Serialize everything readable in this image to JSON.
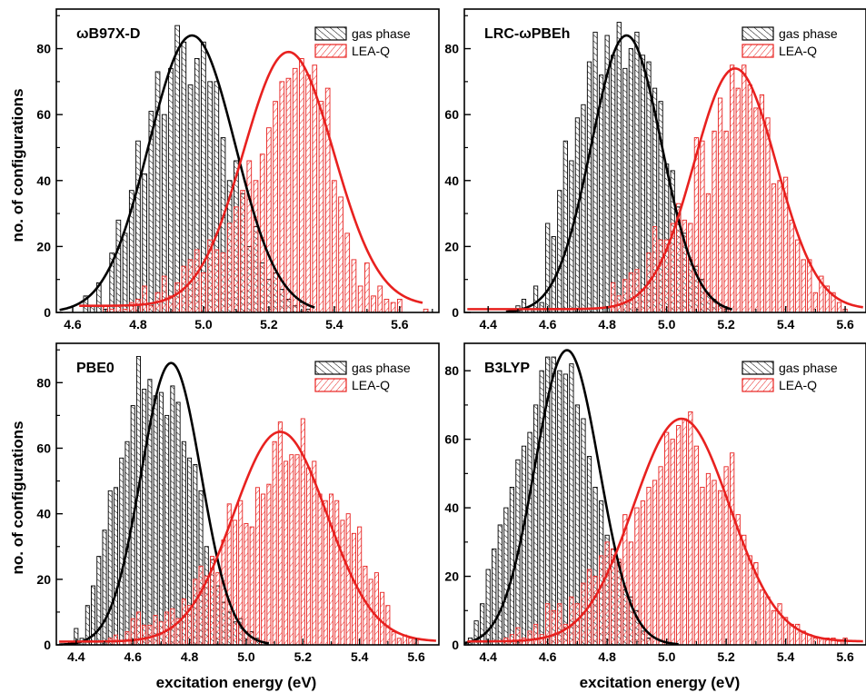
{
  "figure": {
    "ylabel": "no. of configurations",
    "xlabel": "excitation energy (eV)",
    "legend_labels": [
      "gas phase",
      "LEA-Q"
    ]
  },
  "colors": {
    "gas": "#000000",
    "leaq": "#e8211f"
  },
  "chart_data": [
    {
      "type": "bar",
      "title": "ωB97X-D",
      "xlim": [
        4.55,
        5.72
      ],
      "ylim": [
        0,
        92
      ],
      "xticks": [
        4.6,
        4.8,
        5.0,
        5.2,
        5.4,
        5.6
      ],
      "yticks": [
        0,
        20,
        40,
        60,
        80
      ],
      "bin_width": 0.02,
      "legend": "top-right",
      "series": [
        {
          "name": "gas phase",
          "x": [
            4.64,
            4.66,
            4.68,
            4.7,
            4.72,
            4.74,
            4.76,
            4.78,
            4.8,
            4.82,
            4.84,
            4.86,
            4.88,
            4.9,
            4.92,
            4.94,
            4.96,
            4.98,
            5.0,
            5.02,
            5.04,
            5.06,
            5.08,
            5.1,
            5.12,
            5.14,
            5.16,
            5.18,
            5.2,
            5.22,
            5.24,
            5.26,
            5.28,
            5.3,
            5.32
          ],
          "values": [
            5,
            2,
            9,
            1,
            18,
            28,
            24,
            37,
            52,
            42,
            61,
            73,
            60,
            74,
            87,
            82,
            69,
            77,
            82,
            70,
            70,
            53,
            40,
            46,
            36,
            20,
            26,
            15,
            10,
            12,
            7,
            4,
            2,
            3,
            1
          ]
        },
        {
          "name": "LEA-Q",
          "x": [
            4.7,
            4.72,
            4.74,
            4.76,
            4.78,
            4.8,
            4.82,
            4.84,
            4.86,
            4.88,
            4.9,
            4.92,
            4.94,
            4.96,
            4.98,
            5.0,
            5.02,
            5.04,
            5.06,
            5.08,
            5.1,
            5.12,
            5.14,
            5.16,
            5.18,
            5.2,
            5.22,
            5.24,
            5.26,
            5.28,
            5.3,
            5.32,
            5.34,
            5.36,
            5.38,
            5.4,
            5.42,
            5.44,
            5.46,
            5.48,
            5.5,
            5.52,
            5.54,
            5.56,
            5.58,
            5.6,
            5.68
          ],
          "values": [
            2,
            1,
            2,
            1,
            3,
            4,
            8,
            2,
            6,
            11,
            5,
            9,
            14,
            16,
            19,
            12,
            22,
            19,
            18,
            27,
            32,
            37,
            46,
            40,
            48,
            56,
            64,
            70,
            71,
            74,
            77,
            72,
            75,
            64,
            68,
            40,
            35,
            24,
            16,
            8,
            15,
            5,
            8,
            4,
            3,
            4,
            1
          ]
        }
      ],
      "fit": [
        {
          "name": "gas phase",
          "amplitude": 84,
          "mean": 4.965,
          "sigma": 0.132,
          "x_range": [
            4.56,
            5.34
          ]
        },
        {
          "name": "LEA-Q",
          "amplitude": 77,
          "mean": 5.26,
          "sigma": 0.138,
          "x_range": [
            4.62,
            5.67
          ],
          "baseline": 2
        }
      ]
    },
    {
      "type": "bar",
      "title": "LRC-ωPBEh",
      "xlim": [
        4.32,
        5.67
      ],
      "ylim": [
        0,
        92
      ],
      "xticks": [
        4.4,
        4.6,
        4.8,
        5.0,
        5.2,
        5.4,
        5.6
      ],
      "yticks": [
        0,
        20,
        40,
        60,
        80
      ],
      "bin_width": 0.02,
      "legend": "top-right",
      "series": [
        {
          "name": "gas phase",
          "x": [
            4.5,
            4.52,
            4.54,
            4.56,
            4.58,
            4.6,
            4.62,
            4.64,
            4.66,
            4.68,
            4.7,
            4.72,
            4.74,
            4.76,
            4.78,
            4.8,
            4.82,
            4.84,
            4.86,
            4.88,
            4.9,
            4.92,
            4.94,
            4.96,
            4.98,
            5.0,
            5.02,
            5.04,
            5.06,
            5.08,
            5.1,
            5.12,
            5.14,
            5.16,
            5.18,
            5.2
          ],
          "values": [
            2,
            4,
            1,
            8,
            3,
            27,
            23,
            37,
            52,
            46,
            59,
            63,
            76,
            85,
            72,
            84,
            78,
            88,
            74,
            80,
            85,
            78,
            76,
            68,
            64,
            45,
            43,
            32,
            24,
            16,
            14,
            10,
            6,
            4,
            2,
            1
          ]
        },
        {
          "name": "LEA-Q",
          "x": [
            4.82,
            4.84,
            4.86,
            4.88,
            4.9,
            4.92,
            4.94,
            4.96,
            4.98,
            5.0,
            5.02,
            5.04,
            5.06,
            5.08,
            5.1,
            5.12,
            5.14,
            5.16,
            5.18,
            5.2,
            5.22,
            5.24,
            5.26,
            5.28,
            5.3,
            5.32,
            5.34,
            5.36,
            5.38,
            5.4,
            5.42,
            5.44,
            5.46,
            5.48,
            5.5,
            5.52,
            5.54,
            5.56,
            5.58,
            5.6
          ],
          "values": [
            9,
            5,
            10,
            12,
            13,
            7,
            18,
            26,
            22,
            22,
            27,
            33,
            28,
            27,
            53,
            52,
            36,
            55,
            65,
            55,
            75,
            68,
            75,
            69,
            62,
            66,
            59,
            39,
            40,
            41,
            28,
            22,
            16,
            16,
            6,
            11,
            8,
            6,
            3,
            1
          ]
        }
      ],
      "fit": [
        {
          "name": "gas phase",
          "amplitude": 84,
          "mean": 4.865,
          "sigma": 0.118,
          "x_range": [
            4.46,
            5.22
          ]
        },
        {
          "name": "LEA-Q",
          "amplitude": 73,
          "mean": 5.23,
          "sigma": 0.138,
          "x_range": [
            4.33,
            5.66
          ],
          "baseline": 1
        }
      ]
    },
    {
      "type": "bar",
      "title": "PBE0",
      "xlim": [
        4.33,
        5.68
      ],
      "ylim": [
        0,
        92
      ],
      "xticks": [
        4.4,
        4.6,
        4.8,
        5.0,
        5.2,
        5.4,
        5.6
      ],
      "yticks": [
        0,
        20,
        40,
        60,
        80
      ],
      "bin_width": 0.02,
      "legend": "top-right",
      "series": [
        {
          "name": "gas phase",
          "x": [
            4.38,
            4.4,
            4.42,
            4.44,
            4.46,
            4.48,
            4.5,
            4.52,
            4.54,
            4.56,
            4.58,
            4.6,
            4.62,
            4.64,
            4.66,
            4.68,
            4.7,
            4.72,
            4.74,
            4.76,
            4.78,
            4.8,
            4.82,
            4.84,
            4.86,
            4.88,
            4.9,
            4.92,
            4.94,
            4.96,
            4.98,
            5.0,
            5.02,
            5.04,
            5.06
          ],
          "values": [
            1,
            5,
            2,
            12,
            18,
            27,
            35,
            47,
            48,
            57,
            62,
            73,
            88,
            78,
            81,
            76,
            77,
            70,
            79,
            74,
            62,
            57,
            55,
            47,
            30,
            26,
            18,
            13,
            10,
            7,
            8,
            4,
            4,
            2,
            1
          ]
        },
        {
          "name": "LEA-Q",
          "x": [
            4.52,
            4.54,
            4.56,
            4.58,
            4.6,
            4.62,
            4.64,
            4.66,
            4.68,
            4.7,
            4.72,
            4.74,
            4.76,
            4.78,
            4.8,
            4.82,
            4.84,
            4.86,
            4.88,
            4.9,
            4.92,
            4.94,
            4.96,
            4.98,
            5.0,
            5.02,
            5.04,
            5.06,
            5.08,
            5.1,
            5.12,
            5.14,
            5.16,
            5.18,
            5.2,
            5.22,
            5.24,
            5.26,
            5.28,
            5.3,
            5.32,
            5.34,
            5.36,
            5.38,
            5.4,
            5.42,
            5.44,
            5.46,
            5.48,
            5.5,
            5.52,
            5.54,
            5.56,
            5.58,
            5.6
          ],
          "values": [
            2,
            3,
            1,
            4,
            8,
            10,
            6,
            6,
            9,
            7,
            10,
            11,
            8,
            14,
            12,
            20,
            24,
            21,
            27,
            22,
            32,
            43,
            38,
            44,
            37,
            36,
            48,
            46,
            49,
            62,
            68,
            56,
            58,
            58,
            69,
            54,
            56,
            46,
            44,
            46,
            44,
            38,
            40,
            34,
            36,
            24,
            20,
            22,
            16,
            12,
            4,
            2,
            3,
            2,
            2
          ]
        }
      ],
      "fit": [
        {
          "name": "gas phase",
          "amplitude": 86,
          "mean": 4.735,
          "sigma": 0.106,
          "x_range": [
            4.34,
            5.08
          ]
        },
        {
          "name": "LEA-Q",
          "amplitude": 64,
          "mean": 5.12,
          "sigma": 0.165,
          "x_range": [
            4.34,
            5.67
          ],
          "baseline": 1
        }
      ]
    },
    {
      "type": "bar",
      "title": "B3LYP",
      "xlim": [
        4.32,
        5.67
      ],
      "ylim": [
        0,
        88
      ],
      "xticks": [
        4.4,
        4.6,
        4.8,
        5.0,
        5.2,
        5.4,
        5.6
      ],
      "yticks": [
        0,
        20,
        40,
        60,
        80
      ],
      "bin_width": 0.02,
      "legend": "top-right",
      "series": [
        {
          "name": "gas phase",
          "x": [
            4.34,
            4.36,
            4.38,
            4.4,
            4.42,
            4.44,
            4.46,
            4.48,
            4.5,
            4.52,
            4.54,
            4.56,
            4.58,
            4.6,
            4.62,
            4.64,
            4.66,
            4.68,
            4.7,
            4.72,
            4.74,
            4.76,
            4.78,
            4.8,
            4.82,
            4.84,
            4.86,
            4.88,
            4.9,
            4.92,
            4.94
          ],
          "values": [
            2,
            7,
            12,
            22,
            28,
            35,
            40,
            46,
            54,
            58,
            62,
            70,
            80,
            84,
            84,
            80,
            79,
            82,
            70,
            66,
            55,
            46,
            42,
            32,
            28,
            24,
            16,
            14,
            10,
            4,
            2
          ]
        },
        {
          "name": "LEA-Q",
          "x": [
            4.46,
            4.48,
            4.5,
            4.52,
            4.54,
            4.56,
            4.58,
            4.6,
            4.62,
            4.64,
            4.66,
            4.68,
            4.7,
            4.72,
            4.74,
            4.76,
            4.78,
            4.8,
            4.82,
            4.84,
            4.86,
            4.88,
            4.9,
            4.92,
            4.94,
            4.96,
            4.98,
            5.0,
            5.02,
            5.04,
            5.06,
            5.08,
            5.1,
            5.12,
            5.14,
            5.16,
            5.18,
            5.2,
            5.22,
            5.24,
            5.26,
            5.28,
            5.3,
            5.32,
            5.34,
            5.36,
            5.38,
            5.4,
            5.42,
            5.44,
            5.46,
            5.48,
            5.5,
            5.52,
            5.54,
            5.56,
            5.58,
            5.6
          ],
          "values": [
            2,
            3,
            5,
            2,
            4,
            6,
            3,
            12,
            10,
            12,
            6,
            14,
            12,
            18,
            22,
            20,
            26,
            30,
            28,
            25,
            38,
            30,
            40,
            42,
            46,
            48,
            52,
            62,
            60,
            64,
            66,
            68,
            58,
            46,
            50,
            48,
            45,
            52,
            56,
            38,
            32,
            26,
            24,
            16,
            14,
            10,
            12,
            8,
            6,
            6,
            4,
            3,
            2,
            2,
            2,
            2,
            1,
            2
          ]
        }
      ],
      "fit": [
        {
          "name": "gas phase",
          "amplitude": 86,
          "mean": 4.665,
          "sigma": 0.108,
          "x_range": [
            4.32,
            5.04
          ]
        },
        {
          "name": "LEA-Q",
          "amplitude": 65,
          "mean": 5.05,
          "sigma": 0.162,
          "x_range": [
            4.33,
            5.66
          ],
          "baseline": 1
        }
      ]
    }
  ]
}
